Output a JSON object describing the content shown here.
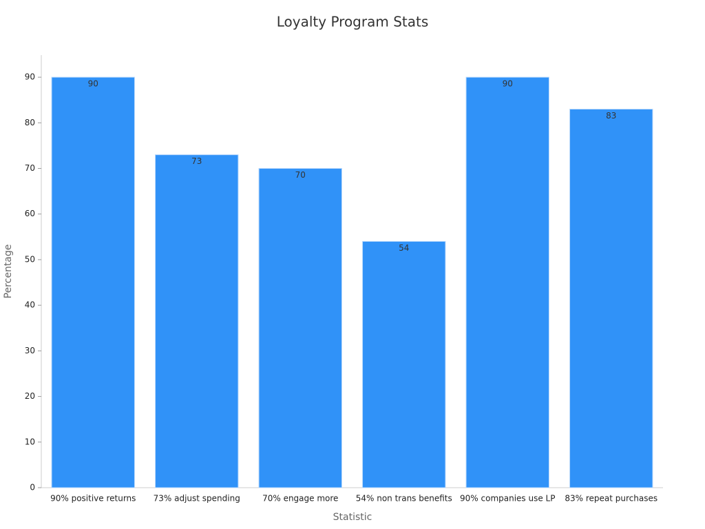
{
  "chart_data": {
    "type": "bar",
    "title": "Loyalty Program Stats",
    "x_label": "Statistic",
    "y_label": "Percentage",
    "categories": [
      "90% positive returns",
      "73% adjust spending",
      "70% engage more",
      "54% non trans benefits",
      "90% companies use LP",
      "83% repeat purchases"
    ],
    "values": [
      90,
      73,
      70,
      54,
      90,
      83
    ],
    "color": "#3092f8",
    "ylim": [
      0,
      95
    ],
    "yticks": [
      0,
      10,
      20,
      30,
      40,
      50,
      60,
      70,
      80,
      90
    ],
    "grid": false
  }
}
